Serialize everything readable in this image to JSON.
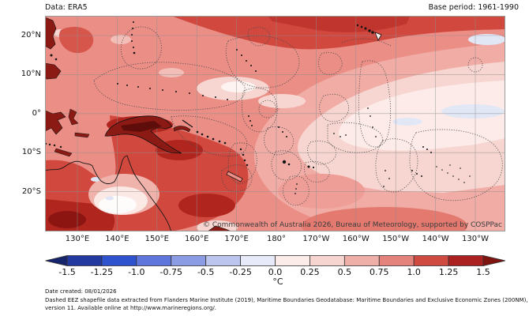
{
  "header": {
    "data_source": "Data: ERA5",
    "base_period": "Base period: 1961-1990"
  },
  "map": {
    "copyright": "© Commonwealth of Australia 2026, Bureau of Meteorology, supported by COSPPac",
    "lat_labels": [
      "20°N",
      "10°N",
      "0°",
      "10°S",
      "20°S"
    ],
    "lon_labels": [
      "130°E",
      "140°E",
      "150°E",
      "160°E",
      "170°E",
      "180°",
      "170°W",
      "160°W",
      "150°W",
      "140°W",
      "130°W"
    ]
  },
  "colorbar": {
    "ticks": [
      "-1.5",
      "-1.25",
      "-1.0",
      "-0.75",
      "-0.5",
      "-0.25",
      "0.0",
      "0.25",
      "0.5",
      "0.75",
      "1.0",
      "1.25",
      "1.5"
    ],
    "unit": "°C",
    "segment_colors": [
      "#24399f",
      "#2f52cf",
      "#5f77dc",
      "#8b9be4",
      "#bcc5ed",
      "#e7eaf8",
      "#fbece9",
      "#f6d5d0",
      "#eeafa9",
      "#e4837c",
      "#cf4a41",
      "#ab2020"
    ],
    "arrow_left_color": "#15246b",
    "arrow_right_color": "#7f1310"
  },
  "footer": {
    "date_created": "Date created: 08/01/2026",
    "attribution_line1": "Dashed EEZ shapefile data extracted from Flanders Marine Institute (2019), Maritime Boundaries Geodatabase: Maritime Boundaries and Exclusive Economic Zones (200NM),",
    "attribution_line2": "version 11. Available online at http://www.marineregions.org/."
  },
  "chart_data": {
    "type": "heatmap",
    "unit": "°C",
    "colorbar_ticks": [
      -1.5,
      -1.25,
      -1.0,
      -0.75,
      -0.5,
      -0.25,
      0.0,
      0.25,
      0.5,
      0.75,
      1.0,
      1.25,
      1.5
    ],
    "lat_ticks": [
      "20°N",
      "10°N",
      "0°",
      "10°S",
      "20°S"
    ],
    "lon_ticks": [
      "130°E",
      "140°E",
      "150°E",
      "160°E",
      "170°E",
      "180°",
      "170°W",
      "160°W",
      "150°W",
      "140°W",
      "130°W"
    ],
    "description": "Temperature anomaly map of the tropical Pacific (ERA5 vs 1961-1990 base). Anomalies are mostly +0.25 to +1.5 °C: warmest (>1.0 °C) over the Maritime Continent, New Guinea, Coral Sea, south of Australia and in a zonal band north of Hawaii; weakest (0 to +0.25 °C with small patches slightly below 0) in the central-eastern equatorial Pacific, interior Australia and far east of the domain. Dotted lines are EEZ boundaries."
  }
}
